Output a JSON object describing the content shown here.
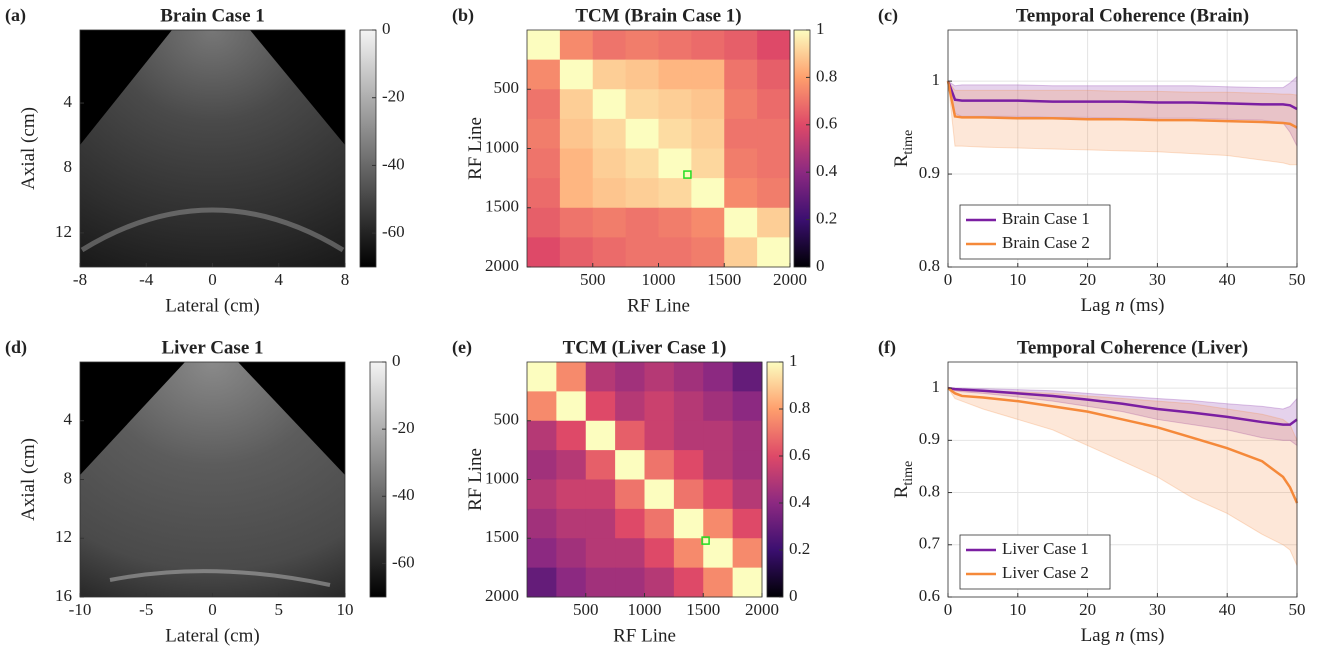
{
  "chart_data": [
    {
      "type": "image",
      "panel_label": "(a)",
      "title": "Brain Case 1",
      "xlabel": "Lateral (cm)",
      "ylabel": "Axial (cm)",
      "xlim": [
        -8,
        8
      ],
      "xticks": [
        -8,
        -4,
        0,
        4,
        8
      ],
      "ylim": [
        -0.5,
        14.1
      ],
      "yticks": [
        4,
        8,
        12
      ],
      "yreverse": true,
      "colormap": "gray",
      "clim": [
        -70,
        0
      ],
      "cticks": [
        0,
        -20,
        -40,
        -60
      ]
    },
    {
      "type": "heatmap",
      "panel_label": "(b)",
      "title": "TCM (Brain Case 1)",
      "xlabel": "RF Line",
      "ylabel": "RF Line",
      "xlim": [
        0,
        2000
      ],
      "xticks": [
        500,
        1000,
        1500,
        2000
      ],
      "ylim": [
        0,
        2000
      ],
      "yticks": [
        500,
        1000,
        1500,
        2000
      ],
      "yreverse": true,
      "colormap": "magma",
      "clim": [
        0,
        1
      ],
      "cticks": [
        0,
        0.2,
        0.4,
        0.6,
        0.8,
        1
      ],
      "z": [
        [
          1,
          0.75,
          0.7,
          0.72,
          0.7,
          0.68,
          0.65,
          0.6
        ],
        [
          0.75,
          1,
          0.9,
          0.88,
          0.85,
          0.85,
          0.7,
          0.65
        ],
        [
          0.7,
          0.9,
          1,
          0.92,
          0.9,
          0.88,
          0.72,
          0.68
        ],
        [
          0.72,
          0.88,
          0.92,
          1,
          0.93,
          0.9,
          0.7,
          0.7
        ],
        [
          0.7,
          0.85,
          0.9,
          0.93,
          1,
          0.92,
          0.72,
          0.7
        ],
        [
          0.68,
          0.85,
          0.88,
          0.9,
          0.92,
          1,
          0.75,
          0.72
        ],
        [
          0.65,
          0.7,
          0.72,
          0.7,
          0.72,
          0.75,
          1,
          0.9
        ],
        [
          0.6,
          0.65,
          0.68,
          0.7,
          0.7,
          0.72,
          0.9,
          1
        ]
      ],
      "marker": {
        "x": 1220,
        "y": 1220,
        "color": "#22dd22"
      }
    },
    {
      "type": "line",
      "panel_label": "(c)",
      "title": "Temporal Coherence (Brain)",
      "xlabel_parts": [
        "Lag",
        "n",
        "(ms)"
      ],
      "ylabel": "R",
      "ylabel_sub": "time",
      "xlim": [
        0,
        50
      ],
      "xticks": [
        0,
        10,
        20,
        30,
        40,
        50
      ],
      "ylim": [
        0.8,
        1.055
      ],
      "yticks": [
        0.8,
        0.9,
        1
      ],
      "grid": true,
      "legend": "lower left",
      "x": [
        0,
        1,
        2,
        5,
        10,
        15,
        20,
        25,
        30,
        35,
        40,
        45,
        48,
        49,
        50
      ],
      "series": [
        {
          "name": "Brain Case 1",
          "color": "#7b1fa2",
          "values": [
            1,
            0.98,
            0.979,
            0.979,
            0.979,
            0.978,
            0.978,
            0.978,
            0.977,
            0.977,
            0.976,
            0.975,
            0.975,
            0.974,
            0.97
          ],
          "lower": [
            1,
            0.965,
            0.962,
            0.962,
            0.962,
            0.961,
            0.961,
            0.96,
            0.96,
            0.96,
            0.959,
            0.958,
            0.955,
            0.945,
            0.93
          ],
          "upper": [
            1,
            0.995,
            0.996,
            0.996,
            0.996,
            0.995,
            0.995,
            0.995,
            0.995,
            0.995,
            0.994,
            0.993,
            0.993,
            0.998,
            1.005
          ]
        },
        {
          "name": "Brain Case 2",
          "color": "#f5893a",
          "values": [
            1,
            0.962,
            0.961,
            0.961,
            0.96,
            0.96,
            0.959,
            0.959,
            0.958,
            0.958,
            0.957,
            0.956,
            0.955,
            0.954,
            0.95
          ],
          "lower": [
            1,
            0.93,
            0.93,
            0.929,
            0.928,
            0.927,
            0.926,
            0.925,
            0.924,
            0.922,
            0.92,
            0.915,
            0.912,
            0.91,
            0.91
          ],
          "upper": [
            1,
            0.99,
            0.99,
            0.99,
            0.99,
            0.99,
            0.99,
            0.989,
            0.989,
            0.988,
            0.988,
            0.987,
            0.986,
            0.986,
            0.985
          ]
        }
      ]
    },
    {
      "type": "image",
      "panel_label": "(d)",
      "title": "Liver Case 1",
      "xlabel": "Lateral (cm)",
      "ylabel": "Axial (cm)",
      "xlim": [
        -10,
        10
      ],
      "xticks": [
        -10,
        -5,
        0,
        5,
        10
      ],
      "ylim": [
        0,
        16
      ],
      "yticks": [
        4,
        8,
        12,
        16
      ],
      "yreverse": true,
      "colormap": "gray",
      "clim": [
        -70,
        0
      ],
      "cticks": [
        0,
        -20,
        -40,
        -60
      ]
    },
    {
      "type": "heatmap",
      "panel_label": "(e)",
      "title": "TCM (Liver Case 1)",
      "xlabel": "RF Line",
      "ylabel": "RF Line",
      "xlim": [
        0,
        2000
      ],
      "xticks": [
        500,
        1000,
        1500,
        2000
      ],
      "ylim": [
        0,
        2000
      ],
      "yticks": [
        500,
        1000,
        1500,
        2000
      ],
      "yreverse": true,
      "colormap": "magma",
      "clim": [
        0,
        1
      ],
      "cticks": [
        0,
        0.2,
        0.4,
        0.6,
        0.8,
        1
      ],
      "z": [
        [
          1,
          0.75,
          0.5,
          0.45,
          0.5,
          0.45,
          0.4,
          0.3
        ],
        [
          0.75,
          1,
          0.6,
          0.5,
          0.55,
          0.5,
          0.45,
          0.4
        ],
        [
          0.5,
          0.6,
          1,
          0.65,
          0.55,
          0.5,
          0.5,
          0.45
        ],
        [
          0.45,
          0.5,
          0.65,
          1,
          0.7,
          0.6,
          0.5,
          0.45
        ],
        [
          0.5,
          0.55,
          0.55,
          0.7,
          1,
          0.7,
          0.6,
          0.5
        ],
        [
          0.45,
          0.5,
          0.5,
          0.6,
          0.7,
          1,
          0.75,
          0.6
        ],
        [
          0.4,
          0.45,
          0.5,
          0.5,
          0.6,
          0.75,
          1,
          0.75
        ],
        [
          0.3,
          0.4,
          0.45,
          0.45,
          0.5,
          0.6,
          0.75,
          1
        ]
      ],
      "marker": {
        "x": 1520,
        "y": 1520,
        "color": "#22dd22"
      }
    },
    {
      "type": "line",
      "panel_label": "(f)",
      "title": "Temporal Coherence (Liver)",
      "xlabel_parts": [
        "Lag",
        "n",
        "(ms)"
      ],
      "ylabel": "R",
      "ylabel_sub": "time",
      "xlim": [
        0,
        50
      ],
      "xticks": [
        0,
        10,
        20,
        30,
        40,
        50
      ],
      "ylim": [
        0.6,
        1.05
      ],
      "yticks": [
        0.6,
        0.7,
        0.8,
        0.9,
        1
      ],
      "grid": true,
      "legend": "lower left",
      "x": [
        0,
        1,
        2,
        5,
        10,
        15,
        20,
        25,
        30,
        35,
        40,
        45,
        48,
        49,
        50
      ],
      "series": [
        {
          "name": "Liver Case 1",
          "color": "#7b1fa2",
          "values": [
            1,
            0.998,
            0.997,
            0.995,
            0.99,
            0.985,
            0.978,
            0.97,
            0.96,
            0.953,
            0.945,
            0.935,
            0.93,
            0.93,
            0.94
          ],
          "lower": [
            1,
            0.995,
            0.993,
            0.99,
            0.983,
            0.975,
            0.965,
            0.955,
            0.94,
            0.93,
            0.92,
            0.905,
            0.9,
            0.9,
            0.89
          ],
          "upper": [
            1,
            1,
            1,
            0.999,
            0.997,
            0.995,
            0.99,
            0.985,
            0.98,
            0.976,
            0.97,
            0.965,
            0.96,
            0.965,
            0.98
          ]
        },
        {
          "name": "Liver Case 2",
          "color": "#f5893a",
          "values": [
            1,
            0.99,
            0.985,
            0.982,
            0.975,
            0.965,
            0.955,
            0.94,
            0.925,
            0.905,
            0.885,
            0.86,
            0.83,
            0.81,
            0.78
          ],
          "lower": [
            1,
            0.98,
            0.975,
            0.96,
            0.94,
            0.92,
            0.89,
            0.86,
            0.83,
            0.79,
            0.76,
            0.72,
            0.7,
            0.69,
            0.66
          ],
          "upper": [
            1,
            0.995,
            0.995,
            0.995,
            0.993,
            0.99,
            0.985,
            0.98,
            0.975,
            0.97,
            0.96,
            0.95,
            0.94,
            0.93,
            0.9
          ]
        }
      ]
    }
  ]
}
